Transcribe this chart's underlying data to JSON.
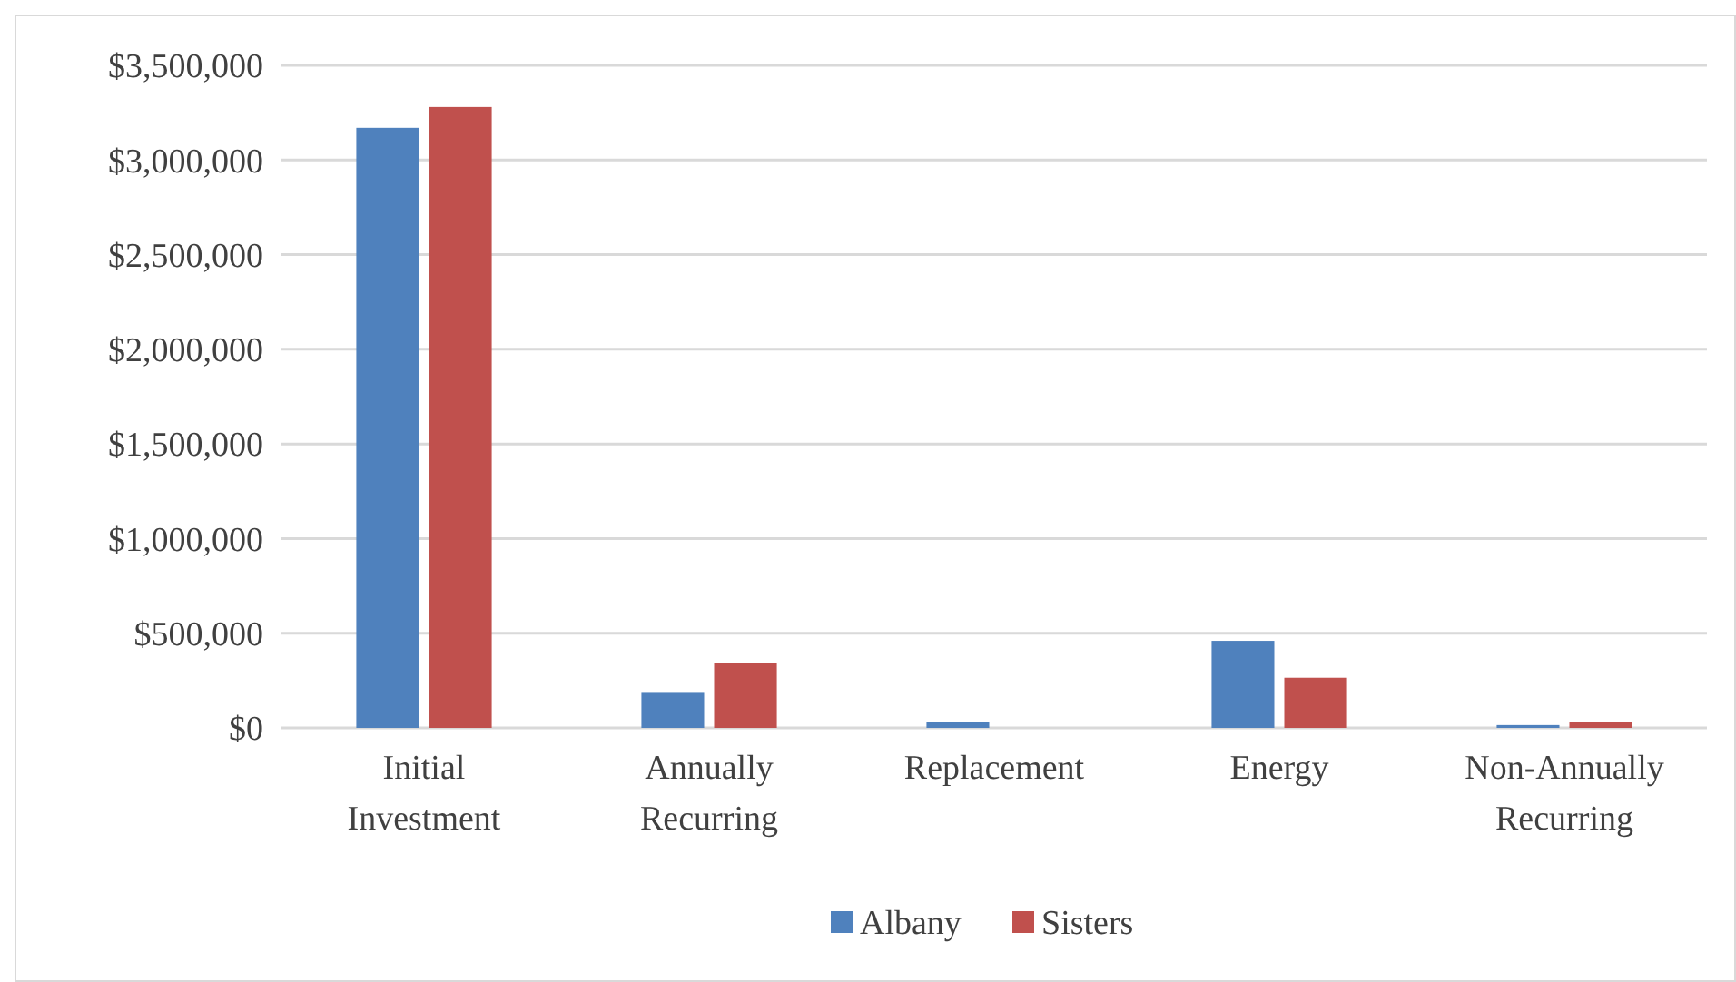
{
  "chart_data": {
    "type": "bar",
    "categories": [
      "Initial Investment",
      "Annually Recurring",
      "Replacement",
      "Energy",
      "Non-Annually Recurring"
    ],
    "series": [
      {
        "name": "Albany",
        "color": "#4f81bd",
        "values": [
          3170000,
          185000,
          30000,
          460000,
          15000
        ]
      },
      {
        "name": "Sisters",
        "color": "#c0504d",
        "values": [
          3280000,
          345000,
          0,
          265000,
          30000
        ]
      }
    ],
    "ylim": [
      0,
      3500000
    ],
    "yticks": [
      {
        "value": 0,
        "label": "$0"
      },
      {
        "value": 500000,
        "label": "$500,000"
      },
      {
        "value": 1000000,
        "label": "$1,000,000"
      },
      {
        "value": 1500000,
        "label": "$1,500,000"
      },
      {
        "value": 2000000,
        "label": "$2,000,000"
      },
      {
        "value": 2500000,
        "label": "$2,500,000"
      },
      {
        "value": 3000000,
        "label": "$3,000,000"
      },
      {
        "value": 3500000,
        "label": "$3,500,000"
      }
    ],
    "grid": "y",
    "legend": "bottom"
  }
}
